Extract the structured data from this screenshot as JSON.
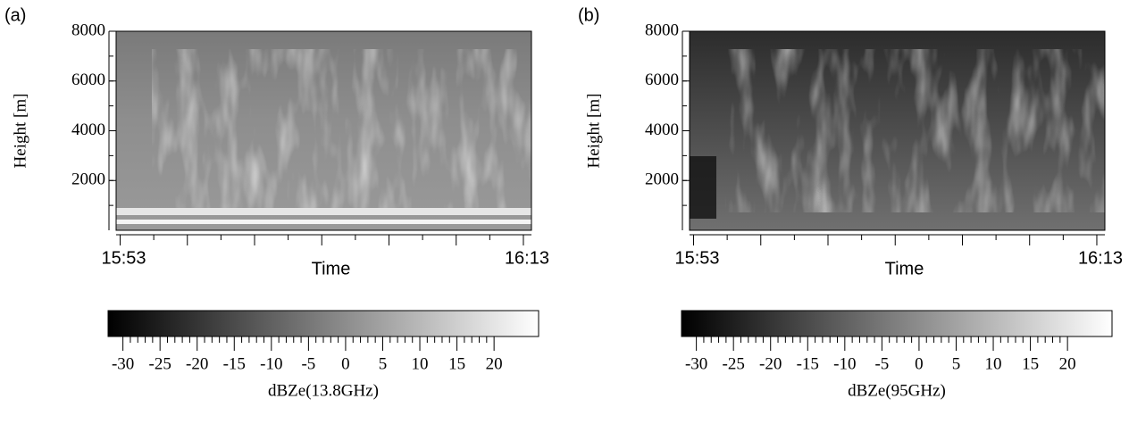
{
  "chart_data": [
    {
      "type": "heatmap",
      "panel_label": "(a)",
      "ylabel": "Height [m]",
      "xlabel": "Time",
      "ylim": [
        0,
        8000
      ],
      "yticks": [
        2000,
        4000,
        6000,
        8000
      ],
      "xlim": [
        -0.2,
        20.4
      ],
      "xticks": [
        {
          "value": 0,
          "label": "15:53"
        },
        {
          "value": 20,
          "label": "16:13"
        }
      ],
      "colorbar": {
        "label": "dBZe(13.8GHz)",
        "lim": [
          -32,
          26
        ],
        "ticks": [
          -30,
          -25,
          -20,
          -15,
          -10,
          -5,
          0,
          5,
          10,
          15,
          20
        ]
      }
    },
    {
      "type": "heatmap",
      "panel_label": "(b)",
      "ylabel": "Height [m]",
      "xlabel": "Time",
      "ylim": [
        0,
        8000
      ],
      "yticks": [
        2000,
        4000,
        6000,
        8000
      ],
      "xlim": [
        -0.2,
        20.4
      ],
      "xticks": [
        {
          "value": 0,
          "label": "15:53"
        },
        {
          "value": 20,
          "label": "16:13"
        }
      ],
      "colorbar": {
        "label": "dBZe(95GHz)",
        "lim": [
          -32,
          26
        ],
        "ticks": [
          -30,
          -25,
          -20,
          -15,
          -10,
          -5,
          0,
          5,
          10,
          15,
          20
        ]
      }
    }
  ]
}
